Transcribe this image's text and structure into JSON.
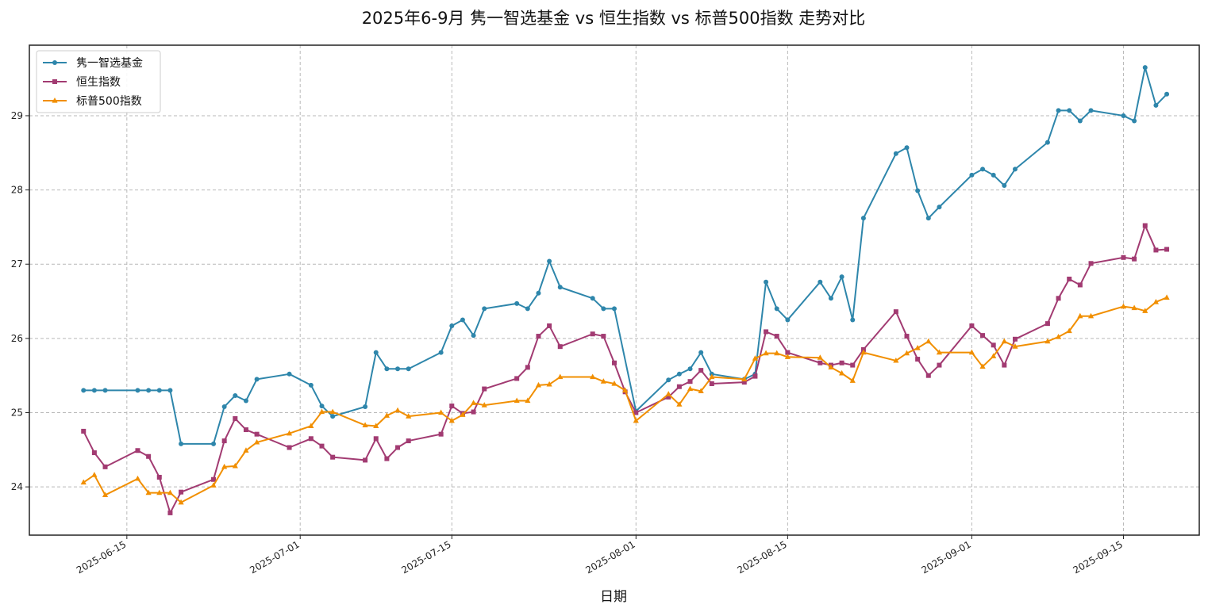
{
  "chart_data": {
    "type": "line",
    "title": "2025年6-9月 隽一智选基金 vs 恒生指数 vs 标普500指数 走势对比",
    "xlabel": "日期",
    "ylabel": "",
    "x_axis_type": "date",
    "xlim": [
      "2025-06-06",
      "2025-09-22"
    ],
    "ylim": [
      23.35,
      29.95
    ],
    "x_ticks": [
      "2025-06-15",
      "2025-07-01",
      "2025-07-15",
      "2025-08-01",
      "2025-08-15",
      "2025-09-01",
      "2025-09-15"
    ],
    "y_ticks": [
      24,
      25,
      26,
      27,
      28,
      29
    ],
    "grid": true,
    "legend_position": "top-left",
    "series": [
      {
        "name": "隽一智选基金",
        "color": "#2e86ab",
        "marker": "circle",
        "points": [
          [
            "2025-06-11",
            25.3
          ],
          [
            "2025-06-12",
            25.3
          ],
          [
            "2025-06-13",
            25.3
          ],
          [
            "2025-06-16",
            25.3
          ],
          [
            "2025-06-17",
            25.3
          ],
          [
            "2025-06-18",
            25.3
          ],
          [
            "2025-06-19",
            25.3
          ],
          [
            "2025-06-20",
            24.58
          ],
          [
            "2025-06-23",
            24.58
          ],
          [
            "2025-06-24",
            25.08
          ],
          [
            "2025-06-25",
            25.23
          ],
          [
            "2025-06-26",
            25.16
          ],
          [
            "2025-06-27",
            25.45
          ],
          [
            "2025-06-30",
            25.52
          ],
          [
            "2025-07-02",
            25.37
          ],
          [
            "2025-07-03",
            25.09
          ],
          [
            "2025-07-04",
            24.95
          ],
          [
            "2025-07-07",
            25.08
          ],
          [
            "2025-07-08",
            25.81
          ],
          [
            "2025-07-09",
            25.59
          ],
          [
            "2025-07-10",
            25.59
          ],
          [
            "2025-07-11",
            25.59
          ],
          [
            "2025-07-14",
            25.81
          ],
          [
            "2025-07-15",
            26.17
          ],
          [
            "2025-07-16",
            26.25
          ],
          [
            "2025-07-17",
            26.04
          ],
          [
            "2025-07-18",
            26.4
          ],
          [
            "2025-07-21",
            26.47
          ],
          [
            "2025-07-22",
            26.4
          ],
          [
            "2025-07-23",
            26.61
          ],
          [
            "2025-07-24",
            27.04
          ],
          [
            "2025-07-25",
            26.69
          ],
          [
            "2025-07-28",
            26.54
          ],
          [
            "2025-07-29",
            26.4
          ],
          [
            "2025-07-30",
            26.4
          ],
          [
            "2025-08-01",
            25.02
          ],
          [
            "2025-08-04",
            25.44
          ],
          [
            "2025-08-05",
            25.52
          ],
          [
            "2025-08-06",
            25.59
          ],
          [
            "2025-08-07",
            25.81
          ],
          [
            "2025-08-08",
            25.52
          ],
          [
            "2025-08-11",
            25.45
          ],
          [
            "2025-08-12",
            25.52
          ],
          [
            "2025-08-13",
            26.76
          ],
          [
            "2025-08-14",
            26.4
          ],
          [
            "2025-08-15",
            26.25
          ],
          [
            "2025-08-18",
            26.76
          ],
          [
            "2025-08-19",
            26.54
          ],
          [
            "2025-08-20",
            26.83
          ],
          [
            "2025-08-21",
            26.25
          ],
          [
            "2025-08-22",
            27.62
          ],
          [
            "2025-08-25",
            28.49
          ],
          [
            "2025-08-26",
            28.57
          ],
          [
            "2025-08-27",
            27.99
          ],
          [
            "2025-08-28",
            27.62
          ],
          [
            "2025-08-29",
            27.77
          ],
          [
            "2025-09-01",
            28.2
          ],
          [
            "2025-09-02",
            28.28
          ],
          [
            "2025-09-03",
            28.2
          ],
          [
            "2025-09-04",
            28.06
          ],
          [
            "2025-09-05",
            28.28
          ],
          [
            "2025-09-08",
            28.64
          ],
          [
            "2025-09-09",
            29.07
          ],
          [
            "2025-09-10",
            29.07
          ],
          [
            "2025-09-11",
            28.93
          ],
          [
            "2025-09-12",
            29.07
          ],
          [
            "2025-09-15",
            29.0
          ],
          [
            "2025-09-16",
            28.93
          ],
          [
            "2025-09-17",
            29.65
          ],
          [
            "2025-09-18",
            29.14
          ],
          [
            "2025-09-19",
            29.29
          ]
        ]
      },
      {
        "name": "恒生指数",
        "color": "#a23b72",
        "marker": "square",
        "points": [
          [
            "2025-06-11",
            24.75
          ],
          [
            "2025-06-12",
            24.46
          ],
          [
            "2025-06-13",
            24.27
          ],
          [
            "2025-06-16",
            24.49
          ],
          [
            "2025-06-17",
            24.41
          ],
          [
            "2025-06-18",
            24.13
          ],
          [
            "2025-06-19",
            23.65
          ],
          [
            "2025-06-20",
            23.93
          ],
          [
            "2025-06-23",
            24.1
          ],
          [
            "2025-06-24",
            24.62
          ],
          [
            "2025-06-25",
            24.92
          ],
          [
            "2025-06-26",
            24.77
          ],
          [
            "2025-06-27",
            24.71
          ],
          [
            "2025-06-30",
            24.53
          ],
          [
            "2025-07-02",
            24.65
          ],
          [
            "2025-07-03",
            24.55
          ],
          [
            "2025-07-04",
            24.4
          ],
          [
            "2025-07-07",
            24.36
          ],
          [
            "2025-07-08",
            24.65
          ],
          [
            "2025-07-09",
            24.38
          ],
          [
            "2025-07-10",
            24.53
          ],
          [
            "2025-07-11",
            24.62
          ],
          [
            "2025-07-14",
            24.71
          ],
          [
            "2025-07-15",
            25.09
          ],
          [
            "2025-07-16",
            24.99
          ],
          [
            "2025-07-17",
            25.01
          ],
          [
            "2025-07-18",
            25.32
          ],
          [
            "2025-07-21",
            25.46
          ],
          [
            "2025-07-22",
            25.61
          ],
          [
            "2025-07-23",
            26.03
          ],
          [
            "2025-07-24",
            26.17
          ],
          [
            "2025-07-25",
            25.89
          ],
          [
            "2025-07-28",
            26.06
          ],
          [
            "2025-07-29",
            26.03
          ],
          [
            "2025-07-30",
            25.67
          ],
          [
            "2025-07-31",
            25.28
          ],
          [
            "2025-08-01",
            25.0
          ],
          [
            "2025-08-04",
            25.21
          ],
          [
            "2025-08-05",
            25.35
          ],
          [
            "2025-08-06",
            25.42
          ],
          [
            "2025-08-07",
            25.57
          ],
          [
            "2025-08-08",
            25.39
          ],
          [
            "2025-08-11",
            25.41
          ],
          [
            "2025-08-12",
            25.49
          ],
          [
            "2025-08-13",
            26.09
          ],
          [
            "2025-08-14",
            26.03
          ],
          [
            "2025-08-15",
            25.81
          ],
          [
            "2025-08-18",
            25.67
          ],
          [
            "2025-08-19",
            25.64
          ],
          [
            "2025-08-20",
            25.67
          ],
          [
            "2025-08-21",
            25.64
          ],
          [
            "2025-08-22",
            25.85
          ],
          [
            "2025-08-25",
            26.36
          ],
          [
            "2025-08-26",
            26.03
          ],
          [
            "2025-08-27",
            25.72
          ],
          [
            "2025-08-28",
            25.5
          ],
          [
            "2025-08-29",
            25.64
          ],
          [
            "2025-09-01",
            26.17
          ],
          [
            "2025-09-02",
            26.04
          ],
          [
            "2025-09-03",
            25.91
          ],
          [
            "2025-09-04",
            25.64
          ],
          [
            "2025-09-05",
            25.99
          ],
          [
            "2025-09-08",
            26.2
          ],
          [
            "2025-09-09",
            26.54
          ],
          [
            "2025-09-10",
            26.8
          ],
          [
            "2025-09-11",
            26.72
          ],
          [
            "2025-09-12",
            27.01
          ],
          [
            "2025-09-15",
            27.09
          ],
          [
            "2025-09-16",
            27.07
          ],
          [
            "2025-09-17",
            27.52
          ],
          [
            "2025-09-18",
            27.19
          ],
          [
            "2025-09-19",
            27.2
          ]
        ]
      },
      {
        "name": "标普500指数",
        "color": "#f18f01",
        "marker": "triangle",
        "points": [
          [
            "2025-06-11",
            24.06
          ],
          [
            "2025-06-12",
            24.16
          ],
          [
            "2025-06-13",
            23.89
          ],
          [
            "2025-06-16",
            24.11
          ],
          [
            "2025-06-17",
            23.92
          ],
          [
            "2025-06-18",
            23.92
          ],
          [
            "2025-06-19",
            23.92
          ],
          [
            "2025-06-20",
            23.79
          ],
          [
            "2025-06-23",
            24.02
          ],
          [
            "2025-06-24",
            24.27
          ],
          [
            "2025-06-25",
            24.28
          ],
          [
            "2025-06-26",
            24.49
          ],
          [
            "2025-06-27",
            24.6
          ],
          [
            "2025-06-30",
            24.72
          ],
          [
            "2025-07-02",
            24.82
          ],
          [
            "2025-07-03",
            25.01
          ],
          [
            "2025-07-04",
            25.01
          ],
          [
            "2025-07-07",
            24.83
          ],
          [
            "2025-07-08",
            24.82
          ],
          [
            "2025-07-09",
            24.96
          ],
          [
            "2025-07-10",
            25.03
          ],
          [
            "2025-07-11",
            24.95
          ],
          [
            "2025-07-14",
            25.0
          ],
          [
            "2025-07-15",
            24.89
          ],
          [
            "2025-07-16",
            24.97
          ],
          [
            "2025-07-17",
            25.13
          ],
          [
            "2025-07-18",
            25.1
          ],
          [
            "2025-07-21",
            25.16
          ],
          [
            "2025-07-22",
            25.16
          ],
          [
            "2025-07-23",
            25.37
          ],
          [
            "2025-07-24",
            25.38
          ],
          [
            "2025-07-25",
            25.48
          ],
          [
            "2025-07-28",
            25.48
          ],
          [
            "2025-07-29",
            25.42
          ],
          [
            "2025-07-30",
            25.39
          ],
          [
            "2025-07-31",
            25.3
          ],
          [
            "2025-08-01",
            24.89
          ],
          [
            "2025-08-04",
            25.25
          ],
          [
            "2025-08-05",
            25.11
          ],
          [
            "2025-08-06",
            25.32
          ],
          [
            "2025-08-07",
            25.29
          ],
          [
            "2025-08-08",
            25.48
          ],
          [
            "2025-08-11",
            25.45
          ],
          [
            "2025-08-12",
            25.73
          ],
          [
            "2025-08-13",
            25.8
          ],
          [
            "2025-08-14",
            25.8
          ],
          [
            "2025-08-15",
            25.75
          ],
          [
            "2025-08-18",
            25.74
          ],
          [
            "2025-08-19",
            25.61
          ],
          [
            "2025-08-20",
            25.53
          ],
          [
            "2025-08-21",
            25.43
          ],
          [
            "2025-08-22",
            25.81
          ],
          [
            "2025-08-25",
            25.7
          ],
          [
            "2025-08-26",
            25.8
          ],
          [
            "2025-08-27",
            25.87
          ],
          [
            "2025-08-28",
            25.96
          ],
          [
            "2025-08-29",
            25.81
          ],
          [
            "2025-09-01",
            25.81
          ],
          [
            "2025-09-02",
            25.62
          ],
          [
            "2025-09-03",
            25.76
          ],
          [
            "2025-09-04",
            25.96
          ],
          [
            "2025-09-05",
            25.89
          ],
          [
            "2025-09-08",
            25.96
          ],
          [
            "2025-09-09",
            26.02
          ],
          [
            "2025-09-10",
            26.1
          ],
          [
            "2025-09-11",
            26.3
          ],
          [
            "2025-09-12",
            26.3
          ],
          [
            "2025-09-15",
            26.43
          ],
          [
            "2025-09-16",
            26.41
          ],
          [
            "2025-09-17",
            26.37
          ],
          [
            "2025-09-18",
            26.49
          ],
          [
            "2025-09-19",
            26.55
          ]
        ]
      }
    ]
  }
}
